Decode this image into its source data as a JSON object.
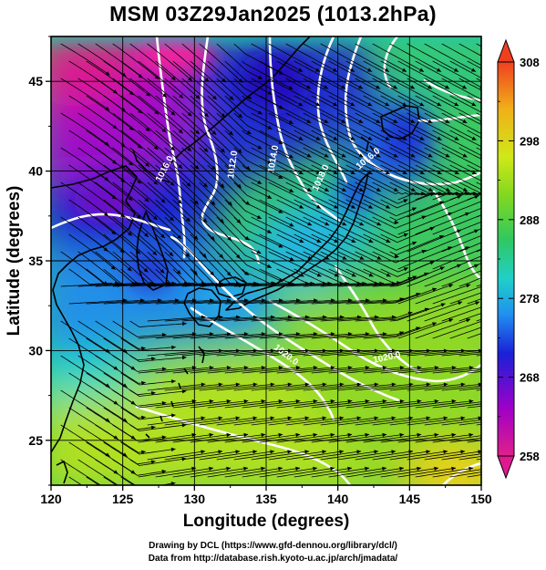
{
  "title": "MSM 03Z29Jan2025 (1013.2hPa)",
  "x_axis": {
    "label": "Longitude (degrees)",
    "range": [
      120,
      150
    ],
    "ticks": [
      "120",
      "125",
      "130",
      "135",
      "140",
      "145",
      "150"
    ]
  },
  "y_axis": {
    "label": "Latitude  (degrees)",
    "range": [
      22.5,
      47.5
    ],
    "ticks": [
      "25",
      "30",
      "35",
      "40",
      "45"
    ]
  },
  "colorbar": {
    "range": [
      258,
      308
    ],
    "tick_labels": [
      "308",
      "298",
      "288",
      "278",
      "268",
      "258"
    ],
    "colors_low_to_high": [
      "#e0208a",
      "#a000c8",
      "#1a20d8",
      "#2090f0",
      "#20d0c8",
      "#30c860",
      "#80d820",
      "#d0e818",
      "#f0b018",
      "#f04020"
    ]
  },
  "isobar_labels": [
    "1016.0",
    "1012.0",
    "1014.0",
    "1018.0",
    "1020.0",
    "1020.0",
    "1016.0"
  ],
  "credits": [
    "Drawing by DCL (https://www.gfd-dennou.org/library/dcl/)",
    "Data from http://database.rish.kyoto-u.ac.jp/arch/jmadata/"
  ]
}
